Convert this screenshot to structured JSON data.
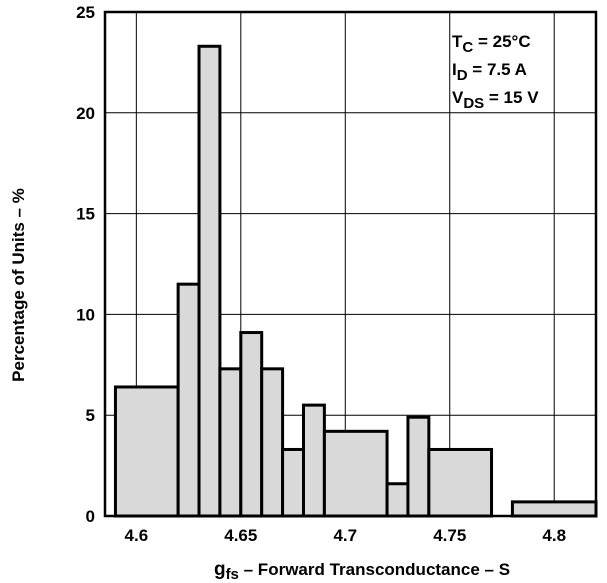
{
  "chart_data": {
    "type": "bar",
    "subtype": "histogram",
    "x_label_main": "g",
    "x_label_sub": "fs",
    "x_label_rest": " – Forward Transconductance – S",
    "ylabel": "Percentage of Units – %",
    "xlim": [
      4.585,
      4.82
    ],
    "ylim": [
      0,
      25
    ],
    "x_ticks": [
      4.6,
      4.65,
      4.7,
      4.75,
      4.8
    ],
    "x_tick_labels": [
      "4.6",
      "4.65",
      "4.7",
      "4.75",
      "4.8"
    ],
    "y_ticks": [
      0,
      5,
      10,
      15,
      20,
      25
    ],
    "y_tick_labels": [
      "0",
      "5",
      "10",
      "15",
      "20",
      "25"
    ],
    "grid": true,
    "bar_fill": "#d9d9d9",
    "bar_stroke": "#000000",
    "bins": [
      {
        "x0": 4.59,
        "x1": 4.62,
        "value": 6.4
      },
      {
        "x0": 4.62,
        "x1": 4.63,
        "value": 11.5
      },
      {
        "x0": 4.63,
        "x1": 4.64,
        "value": 23.3
      },
      {
        "x0": 4.64,
        "x1": 4.65,
        "value": 7.3
      },
      {
        "x0": 4.65,
        "x1": 4.66,
        "value": 9.1
      },
      {
        "x0": 4.66,
        "x1": 4.67,
        "value": 7.3
      },
      {
        "x0": 4.67,
        "x1": 4.68,
        "value": 3.3
      },
      {
        "x0": 4.68,
        "x1": 4.69,
        "value": 5.5
      },
      {
        "x0": 4.69,
        "x1": 4.72,
        "value": 4.2
      },
      {
        "x0": 4.72,
        "x1": 4.73,
        "value": 1.6
      },
      {
        "x0": 4.73,
        "x1": 4.74,
        "value": 4.9
      },
      {
        "x0": 4.74,
        "x1": 4.77,
        "value": 3.3
      },
      {
        "x0": 4.78,
        "x1": 4.82,
        "value": 0.7
      }
    ],
    "annotations": [
      {
        "main": "T",
        "sub": "C",
        "rest": " = 25°C"
      },
      {
        "main": "I",
        "sub": "D",
        "rest": " = 7.5 A"
      },
      {
        "main": "V",
        "sub": "DS",
        "rest": " = 15 V"
      }
    ]
  }
}
